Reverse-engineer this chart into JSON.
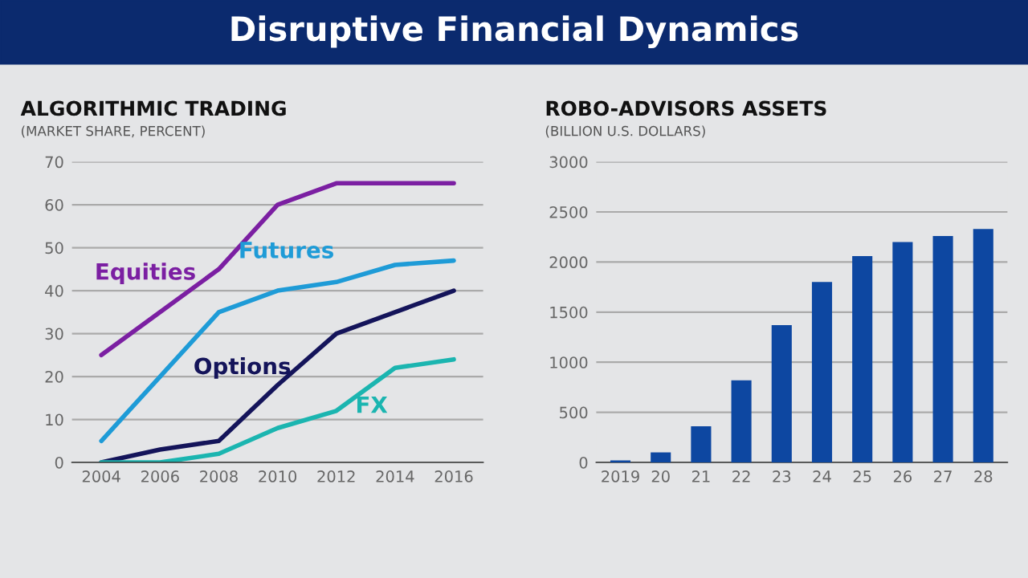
{
  "chart_data": [
    {
      "type": "line",
      "title": "ALGORITHMIC TRADING",
      "subtitle": "(MARKET SHARE, PERCENT)",
      "annotations": [
        "Disruptive Financial Dynamics"
      ],
      "x": [
        2004,
        2006,
        2008,
        2010,
        2012,
        2014,
        2016
      ],
      "series": [
        {
          "name": "Equities",
          "color": "#7b1fa2",
          "values": [
            25,
            35,
            45,
            60,
            65,
            65,
            65
          ]
        },
        {
          "name": "Futures",
          "color": "#1e9bd7",
          "values": [
            5,
            20,
            35,
            40,
            42,
            46,
            47
          ]
        },
        {
          "name": "Options",
          "color": "#14145a",
          "values": [
            0,
            3,
            5,
            18,
            30,
            35,
            40
          ]
        },
        {
          "name": "FX",
          "color": "#1bb5b0",
          "values": [
            0,
            0,
            2,
            8,
            12,
            22,
            24
          ]
        }
      ],
      "xlim": [
        2003,
        2017
      ],
      "xticks": [
        2004,
        2006,
        2008,
        2010,
        2012,
        2014,
        2016
      ],
      "ylim": [
        0,
        70
      ],
      "yticks": [
        0,
        10,
        20,
        30,
        40,
        50,
        60,
        70
      ],
      "grid": "y",
      "marker": "none",
      "line_style": "solid"
    },
    {
      "type": "bar",
      "title": "ROBO-ADVISORS ASSETS",
      "subtitle": "(BILLION U.S. DOLLARS)",
      "categories": [
        "2019",
        "20",
        "21",
        "22",
        "23",
        "24",
        "25",
        "26",
        "27",
        "28"
      ],
      "values": [
        20,
        100,
        360,
        820,
        1370,
        1800,
        2060,
        2200,
        2260,
        2330
      ],
      "color": "#0d47a1",
      "ylim": [
        0,
        3000
      ],
      "yticks": [
        0,
        500,
        1000,
        1500,
        2000,
        2500,
        3000
      ],
      "grid": "y"
    }
  ]
}
